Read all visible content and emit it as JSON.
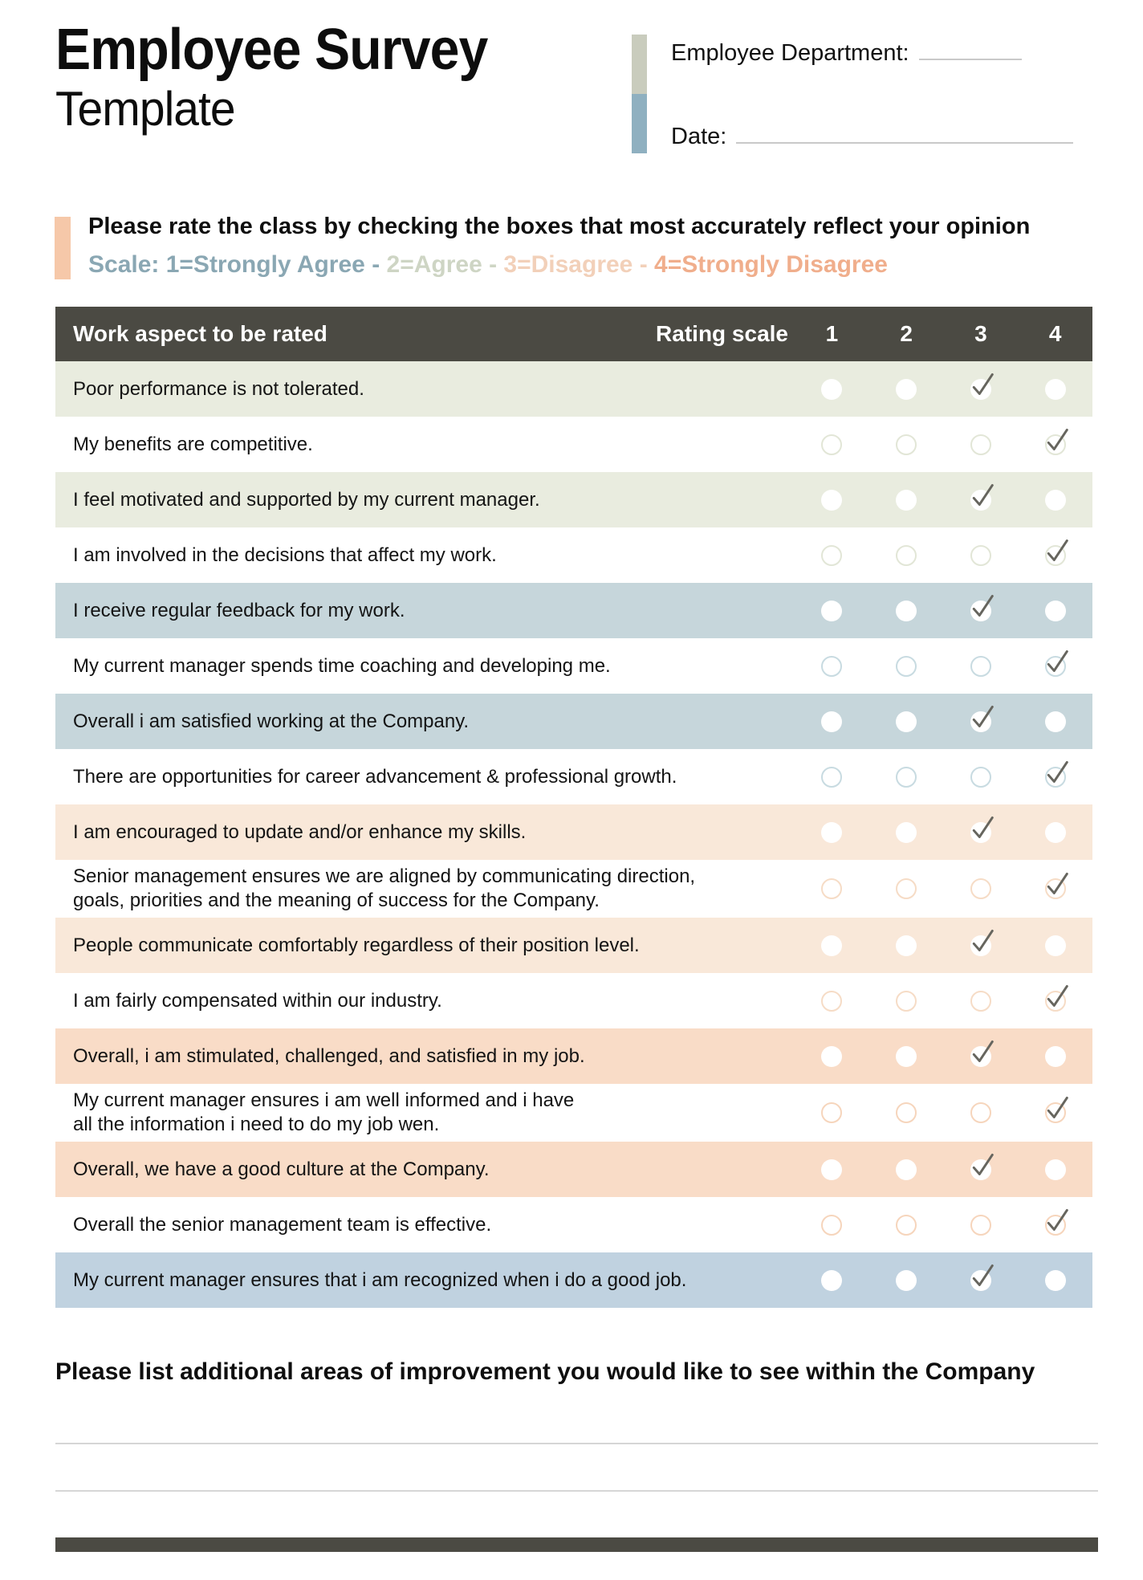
{
  "header": {
    "title_line1": "Employee Survey",
    "title_line2": "Template",
    "fields": [
      {
        "label": "Employee Department:"
      },
      {
        "label": "Date:"
      }
    ]
  },
  "instructions": {
    "line1": "Please rate the class by checking the boxes that most accurately reflect your opinion",
    "scale_parts": [
      {
        "text": "Scale: 1=Strongly Agree - ",
        "color": "#8aa7b3"
      },
      {
        "text": "2=Agree - ",
        "color": "#ced5c4"
      },
      {
        "text": "3=Disagree - ",
        "color": "#f2d0b9"
      },
      {
        "text": "4=Strongly Disagree",
        "color": "#f0ae8c"
      }
    ]
  },
  "table": {
    "header": {
      "aspect": "Work aspect to be rated",
      "rating": "Rating scale",
      "columns": [
        "1",
        "2",
        "3",
        "4"
      ]
    },
    "rows": [
      {
        "lines": [
          "Poor performance is not tolerated."
        ],
        "checked": 3,
        "shaded": true,
        "theme": "sage"
      },
      {
        "lines": [
          "My benefits are competitive."
        ],
        "checked": 4,
        "shaded": false,
        "theme": "sage"
      },
      {
        "lines": [
          "I feel motivated and supported by my current manager."
        ],
        "checked": 3,
        "shaded": true,
        "theme": "sage"
      },
      {
        "lines": [
          "I am involved in the decisions that affect my work."
        ],
        "checked": 4,
        "shaded": false,
        "theme": "sage"
      },
      {
        "lines": [
          "I receive regular feedback for my work."
        ],
        "checked": 3,
        "shaded": true,
        "theme": "blue"
      },
      {
        "lines": [
          "My current manager spends time coaching and developing me."
        ],
        "checked": 4,
        "shaded": false,
        "theme": "blue"
      },
      {
        "lines": [
          "Overall i am satisfied working at the Company."
        ],
        "checked": 3,
        "shaded": true,
        "theme": "blue"
      },
      {
        "lines": [
          "There are opportunities for career advancement & professional growth."
        ],
        "checked": 4,
        "shaded": false,
        "theme": "blue"
      },
      {
        "lines": [
          "I am encouraged to update and/or enhance my skills."
        ],
        "checked": 3,
        "shaded": true,
        "theme": "peach_light"
      },
      {
        "lines": [
          "Senior management ensures we are aligned by communicating direction,",
          "goals, priorities and the meaning of success for the Company."
        ],
        "checked": 4,
        "shaded": false,
        "theme": "peach_light"
      },
      {
        "lines": [
          "People communicate comfortably regardless of their position level."
        ],
        "checked": 3,
        "shaded": true,
        "theme": "peach_light"
      },
      {
        "lines": [
          "I am fairly compensated within our industry."
        ],
        "checked": 4,
        "shaded": false,
        "theme": "peach_light"
      },
      {
        "lines": [
          "Overall, i am stimulated, challenged, and satisfied in my job."
        ],
        "checked": 3,
        "shaded": true,
        "theme": "peach_dark"
      },
      {
        "lines": [
          "My current manager ensures i am well informed and i have",
          "all the information i need to do my job wen."
        ],
        "checked": 4,
        "shaded": false,
        "theme": "peach_dark"
      },
      {
        "lines": [
          "Overall, we have a good culture at the Company."
        ],
        "checked": 3,
        "shaded": true,
        "theme": "peach_dark"
      },
      {
        "lines": [
          "Overall the senior management team is effective."
        ],
        "checked": 4,
        "shaded": false,
        "theme": "peach_dark"
      },
      {
        "lines": [
          "My current manager ensures that i am recognized when i do a good job."
        ],
        "checked": 3,
        "shaded": true,
        "theme": "blue2"
      }
    ]
  },
  "footer": {
    "prompt": "Please list additional areas of improvement you would like to see within the Company",
    "lines": 3
  },
  "colors": {
    "dark": "#4b4a43",
    "check": "#66655e",
    "accent_bar_peach": "#f6c8a9",
    "accent_bar_sage": "#c9ccbd",
    "accent_bar_blue": "#8fb0c0",
    "rule_line": "#d6d6d6",
    "themes": {
      "sage": {
        "bg": "#e9ecdf",
        "outline": "#e2e6d7"
      },
      "blue": {
        "bg": "#c6d6db",
        "outline": "#c8dbe1"
      },
      "peach_light": {
        "bg": "#f9e8d9",
        "outline": "#f6dcc6"
      },
      "peach_dark": {
        "bg": "#f9dcc7",
        "outline": "#f6d5bc"
      },
      "blue2": {
        "bg": "#c0d2e0",
        "outline": "#c7d7e4"
      }
    }
  }
}
